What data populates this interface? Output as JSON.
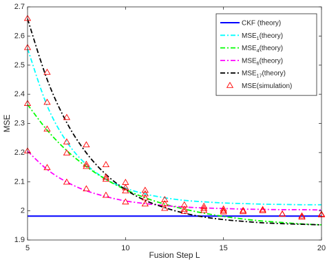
{
  "chart_data": {
    "type": "line",
    "title": "",
    "xlabel": "Fusion Step L",
    "ylabel": "MSE",
    "xlim": [
      5,
      20
    ],
    "ylim": [
      1.9,
      2.7
    ],
    "xticks": [
      5,
      10,
      15,
      20
    ],
    "xtick_labels": [
      "5",
      "10",
      "15",
      "20"
    ],
    "yticks": [
      1.9,
      2,
      2.1,
      2.2,
      2.3,
      2.4,
      2.5,
      2.6,
      2.7
    ],
    "ytick_labels": [
      "1.9",
      "2",
      "2.1",
      "2.2",
      "2.3",
      "2.4",
      "2.5",
      "2.6",
      "2.7"
    ],
    "grid": false,
    "legend_position": "top-right",
    "series": [
      {
        "name": "CKF  (theory)",
        "legend_main": "CKF  (theory)",
        "legend_sub": "",
        "legend_tail": "",
        "style": "solid",
        "color": "#0000ff",
        "x": [
          5,
          20
        ],
        "y": [
          1.982,
          1.982
        ]
      },
      {
        "name": "MSE1(theory)",
        "legend_main": "MSE",
        "legend_sub": "1",
        "legend_tail": "(theory)",
        "style": "dashdot",
        "color": "#00ffff",
        "x": [
          5,
          6,
          7,
          8,
          9,
          10,
          11,
          12,
          13,
          14,
          15,
          16,
          17,
          18,
          19,
          20
        ],
        "y": [
          2.557,
          2.361,
          2.237,
          2.159,
          2.109,
          2.078,
          2.058,
          2.045,
          2.036,
          2.031,
          2.027,
          2.025,
          2.023,
          2.022,
          2.021,
          2.021
        ]
      },
      {
        "name": "MSE4(theory)",
        "legend_main": "MSE",
        "legend_sub": "4",
        "legend_tail": "(theory)",
        "style": "dashdot",
        "color": "#00ff00",
        "x": [
          5,
          6,
          7,
          8,
          9,
          10,
          11,
          12,
          13,
          14,
          15,
          16,
          17,
          18,
          19,
          20
        ],
        "y": [
          2.365,
          2.277,
          2.207,
          2.152,
          2.108,
          2.073,
          2.045,
          2.023,
          2.006,
          1.992,
          1.981,
          1.972,
          1.965,
          1.96,
          1.955,
          1.952
        ]
      },
      {
        "name": "MSE6(theory)",
        "legend_main": "MSE",
        "legend_sub": "6",
        "legend_tail": "(theory)",
        "style": "dashdot",
        "color": "#ff00ff",
        "x": [
          5,
          6,
          7,
          8,
          9,
          10,
          11,
          12,
          13,
          14,
          15,
          16,
          17,
          18,
          19,
          20
        ],
        "y": [
          2.205,
          2.142,
          2.099,
          2.069,
          2.049,
          2.034,
          2.025,
          2.018,
          2.013,
          2.01,
          2.008,
          2.006,
          2.005,
          2.004,
          2.004,
          2.003
        ]
      },
      {
        "name": "MSE17(theory)",
        "legend_main": "MSE",
        "legend_sub": "17",
        "legend_tail": "(theory)",
        "style": "dashdot",
        "color": "#000000",
        "x": [
          5,
          6,
          7,
          8,
          9,
          10,
          11,
          12,
          13,
          14,
          15,
          16,
          17,
          18,
          19,
          20
        ],
        "y": [
          2.659,
          2.451,
          2.303,
          2.199,
          2.125,
          2.073,
          2.036,
          2.011,
          1.992,
          1.979,
          1.97,
          1.964,
          1.959,
          1.956,
          1.954,
          1.952
        ]
      }
    ],
    "markers": {
      "name": "MSE(simulation)",
      "legend_main": "MSE(simulation)",
      "legend_sub": "",
      "legend_tail": "",
      "shape": "triangle-open",
      "color": "#ff0000",
      "x": [
        5,
        5,
        5,
        5,
        6,
        6,
        6,
        6,
        7,
        7,
        7,
        7,
        8,
        8,
        8,
        8,
        9,
        9,
        9,
        9,
        10,
        10,
        10,
        10,
        11,
        11,
        11,
        11,
        12,
        12,
        12,
        13,
        13,
        13,
        14,
        14,
        14,
        15,
        15,
        15,
        16,
        16,
        17,
        17,
        18,
        18,
        19,
        19,
        20,
        20
      ],
      "y": [
        2.66,
        2.56,
        2.368,
        2.205,
        2.475,
        2.372,
        2.28,
        2.148,
        2.32,
        2.236,
        2.198,
        2.098,
        2.226,
        2.159,
        2.152,
        2.075,
        2.158,
        2.115,
        2.108,
        2.053,
        2.097,
        2.079,
        2.068,
        2.03,
        2.07,
        2.058,
        2.044,
        2.023,
        2.038,
        2.024,
        2.008,
        2.02,
        2.005,
        1.998,
        2.015,
        2.008,
        2.001,
        2.006,
        2.0,
        1.996,
        2.001,
        1.997,
        2.004,
        2.0,
        1.989,
        1.988,
        1.982,
        1.978,
        1.988,
        1.986
      ]
    }
  }
}
